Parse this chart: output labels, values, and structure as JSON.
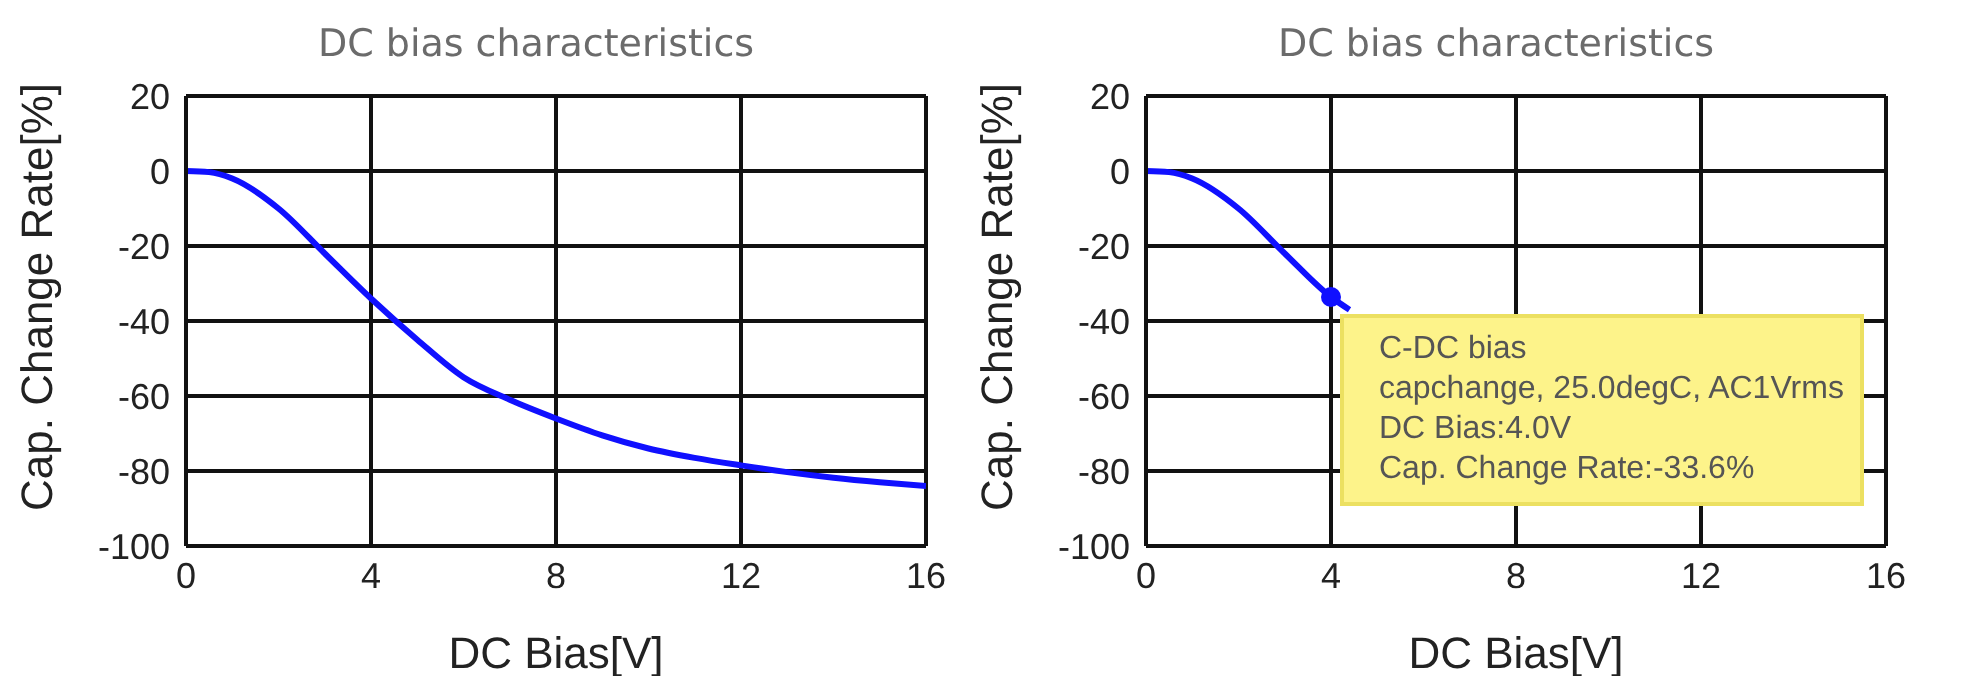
{
  "chart_data": [
    {
      "type": "line",
      "title": "DC bias characteristics",
      "xlabel": "DC Bias[V]",
      "ylabel": "Cap. Change Rate[%]",
      "xlim": [
        0,
        16
      ],
      "xticks": [
        0,
        4,
        8,
        12,
        16
      ],
      "ylim": [
        -100,
        20
      ],
      "yticks": [
        20,
        0,
        -20,
        -40,
        -60,
        -80,
        -100
      ],
      "grid": true,
      "marker": "none",
      "line_style": "solid",
      "x": [
        0,
        0.5,
        1,
        2,
        3,
        4,
        5,
        6,
        7,
        8,
        9,
        10,
        11,
        12,
        13,
        14,
        15,
        16
      ],
      "series": [
        {
          "color": "#1010ff",
          "values": [
            0,
            -0.3,
            -2,
            -10,
            -22,
            -34,
            -45,
            -55,
            -61,
            -66,
            -70.5,
            -74,
            -76.5,
            -78.5,
            -80.3,
            -81.8,
            -83,
            -84
          ]
        }
      ]
    },
    {
      "type": "line",
      "title": "DC bias characteristics",
      "xlabel": "DC Bias[V]",
      "ylabel": "Cap. Change Rate[%]",
      "xlim": [
        0,
        16
      ],
      "xticks": [
        0,
        4,
        8,
        12,
        16
      ],
      "ylim": [
        -100,
        20
      ],
      "yticks": [
        20,
        0,
        -20,
        -40,
        -60,
        -80,
        -100
      ],
      "grid": true,
      "marker": "none",
      "line_style": "solid",
      "series": [
        {
          "color": "#1010ff",
          "x": [
            0,
            0.5,
            1,
            2,
            3,
            4,
            4.4
          ],
          "values": [
            0,
            -0.3,
            -2,
            -10,
            -22,
            -33.6,
            -37
          ]
        },
        {
          "type": "scatter",
          "marker": "circle",
          "color": "#1010ff",
          "x": [
            4
          ],
          "values": [
            -33.6
          ]
        }
      ],
      "annotations": [
        {
          "text": "C-DC bias\ncapchange, 25.0degC, AC1Vrms\nDC Bias:4.0V\nCap. Change Rate:-33.6%",
          "x": 4,
          "y": -33.6
        }
      ]
    }
  ]
}
